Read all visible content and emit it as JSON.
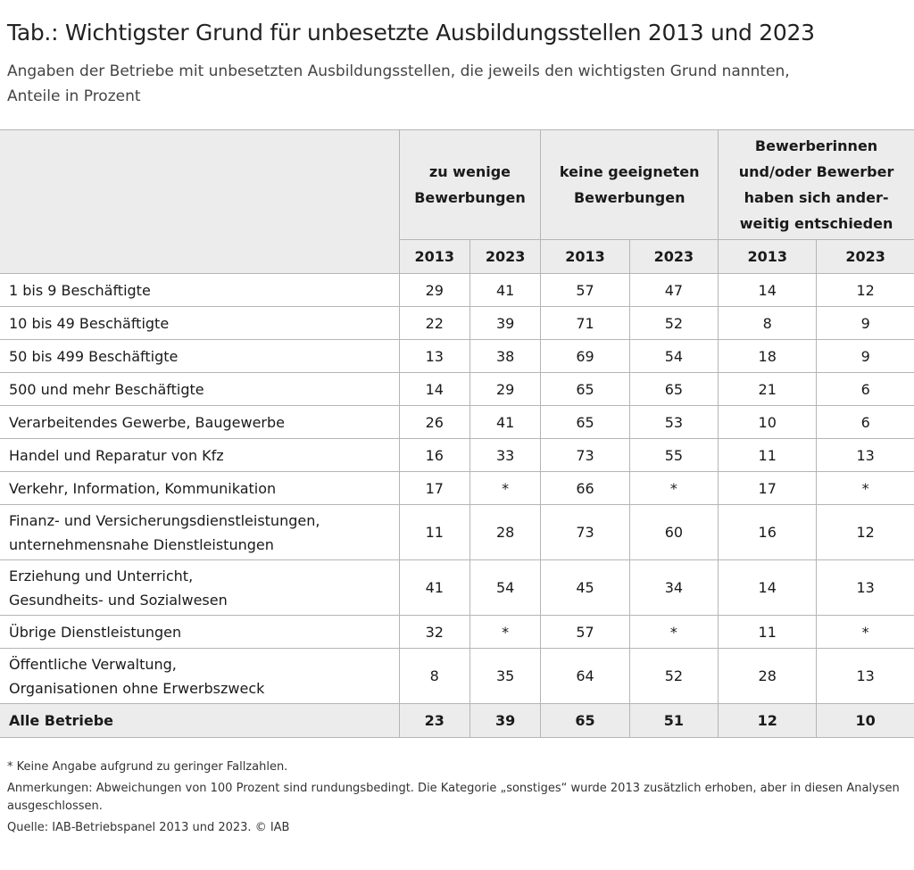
{
  "header": {
    "title": "Tab.: Wichtigster Grund für unbesetzte Ausbildungsstellen 2013 und 2023",
    "subtitle": "Angaben der Betriebe mit unbesetzten Ausbildungsstellen, die jeweils den wichtigsten Grund nannten,\nAnteile in Prozent"
  },
  "table": {
    "groups": [
      "zu wenige\nBewerbungen",
      "keine geeigneten\nBewerbungen",
      "Bewerberinnen\nund/oder Bewerber\nhaben sich ander-\nweitig entschieden"
    ],
    "years": [
      2013,
      2023,
      2013,
      2023,
      2013,
      2023
    ],
    "rows": [
      {
        "label": "1 bis 9 Beschäftigte",
        "values": [
          29,
          41,
          57,
          47,
          14,
          12
        ]
      },
      {
        "label": "10 bis 49 Beschäftigte",
        "values": [
          22,
          39,
          71,
          52,
          8,
          9
        ]
      },
      {
        "label": "50 bis 499 Beschäftigte",
        "values": [
          13,
          38,
          69,
          54,
          18,
          9
        ]
      },
      {
        "label": "500 und mehr Beschäftigte",
        "values": [
          14,
          29,
          65,
          65,
          21,
          6
        ]
      },
      {
        "label": "Verarbeitendes Gewerbe, Baugewerbe",
        "values": [
          26,
          41,
          65,
          53,
          10,
          6
        ]
      },
      {
        "label": "Handel und Reparatur von Kfz",
        "values": [
          16,
          33,
          73,
          55,
          11,
          13
        ]
      },
      {
        "label": "Verkehr, Information, Kommunikation",
        "values": [
          17,
          "*",
          66,
          "*",
          17,
          "*"
        ]
      },
      {
        "label": "Finanz- und Versicherungsdienstleistungen,\nunternehmensnahe Dienstleistungen",
        "values": [
          11,
          28,
          73,
          60,
          16,
          12
        ]
      },
      {
        "label": "Erziehung und Unterricht,\nGesundheits- und Sozialwesen",
        "values": [
          41,
          54,
          45,
          34,
          14,
          13
        ]
      },
      {
        "label": "Übrige Dienstleistungen",
        "values": [
          32,
          "*",
          57,
          "*",
          11,
          "*"
        ]
      },
      {
        "label": "Öffentliche Verwaltung,\nOrganisationen ohne Erwerbszweck",
        "values": [
          8,
          35,
          64,
          52,
          28,
          13
        ]
      },
      {
        "label": "Alle Betriebe",
        "values": [
          23,
          39,
          65,
          51,
          12,
          10
        ]
      }
    ]
  },
  "notes": [
    "* Keine Angabe aufgrund zu geringer Fallzahlen.",
    "Anmerkungen: Abweichungen von 100 Prozent sind rundungsbedingt. Die Kategorie „sonstiges“ wurde 2013 zusätzlich erhoben, aber in diesen Analysen ausgeschlossen.",
    "Quelle: IAB-Betriebspanel 2013 und 2023. © IAB"
  ]
}
